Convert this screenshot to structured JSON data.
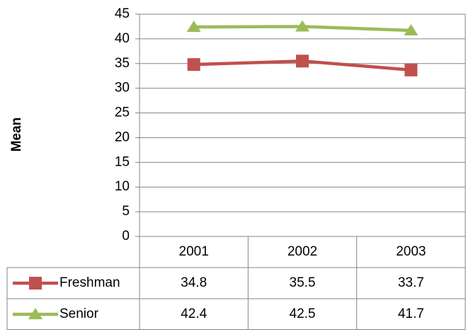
{
  "chart_data": {
    "type": "line",
    "y_label": "Mean",
    "categories": [
      "2001",
      "2002",
      "2003"
    ],
    "series": [
      {
        "name": "Freshman",
        "color": "#c0504d",
        "marker": "square",
        "values": [
          34.8,
          35.5,
          33.7
        ]
      },
      {
        "name": "Senior",
        "color": "#9bbb59",
        "marker": "triangle",
        "values": [
          42.4,
          42.5,
          41.7
        ]
      }
    ],
    "ylim": [
      0,
      45
    ],
    "yticks": [
      0,
      5,
      10,
      15,
      20,
      25,
      30,
      35,
      40,
      45
    ],
    "grid": true,
    "data_table": true
  }
}
